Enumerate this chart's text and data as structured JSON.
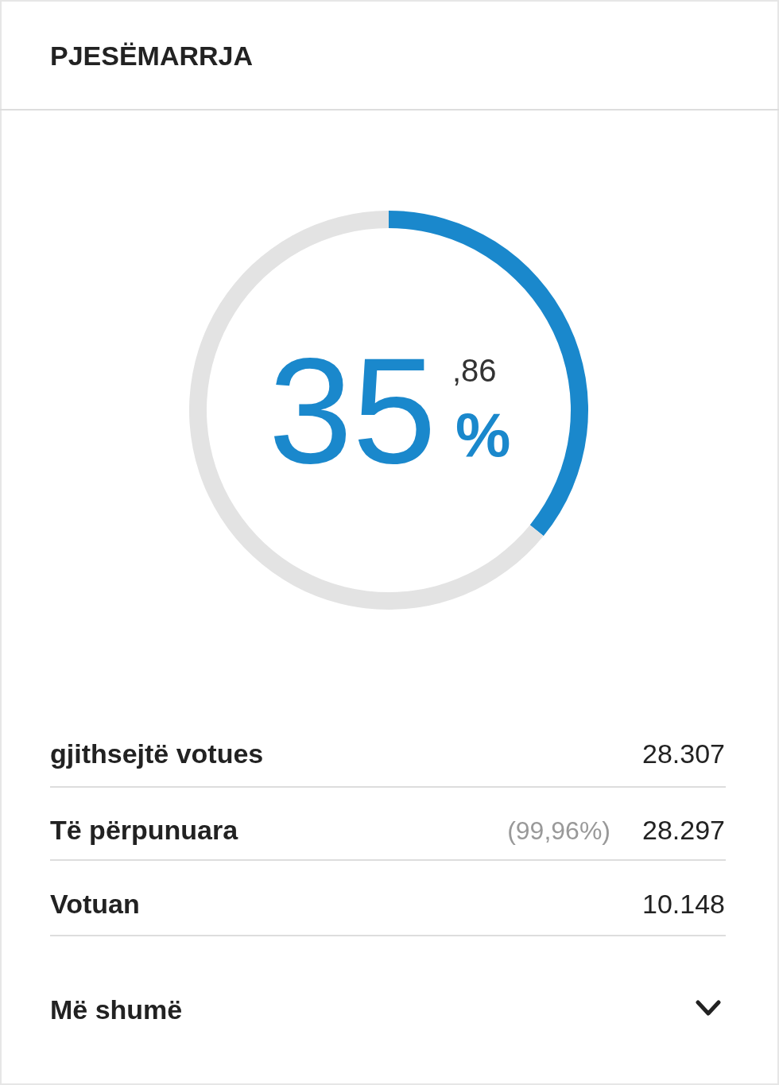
{
  "chart_data": {
    "type": "donut",
    "title": "PJESËMARRJA",
    "categories": [
      null,
      null
    ],
    "values": [
      35.86,
      64.14
    ],
    "colors": [
      "#1a88cc",
      "#e3e3e3"
    ],
    "value_labels": [
      "35,86%",
      null
    ],
    "annotations": [
      "gjithsejtë votues",
      "28.307",
      "Të përpunuara",
      "(99,96%)",
      "28.297",
      "Votuan",
      "10.148",
      "Më shumë"
    ]
  }
}
